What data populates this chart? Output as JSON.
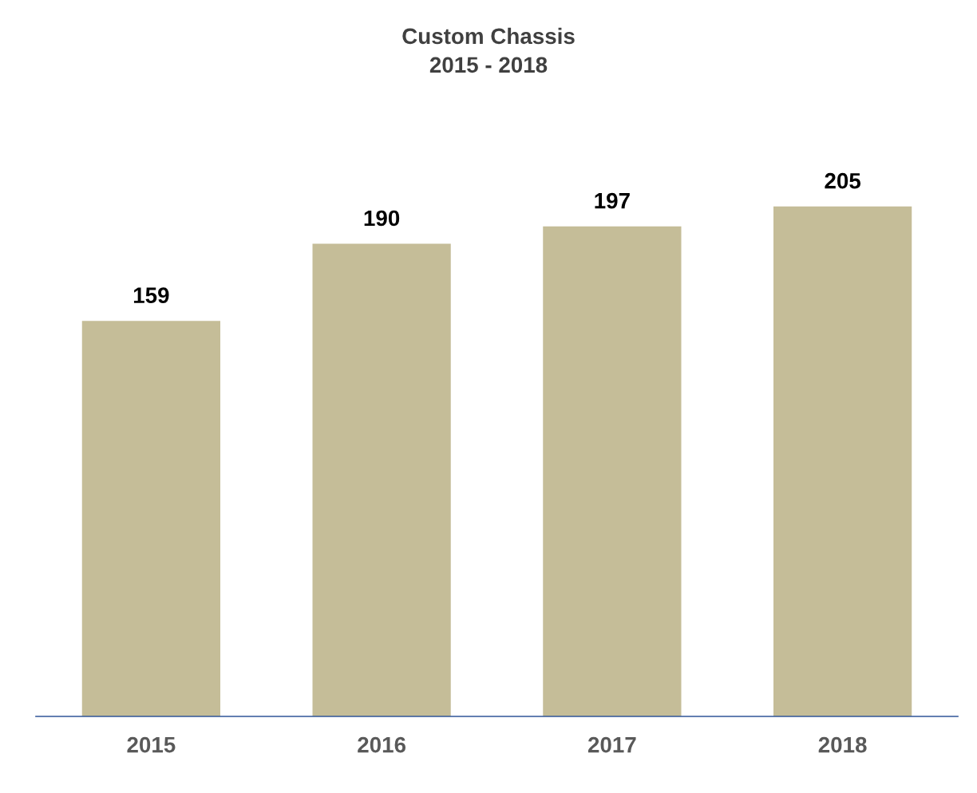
{
  "chart_data": {
    "type": "bar",
    "title": "Custom Chassis\n2015 - 2018",
    "categories": [
      "2015",
      "2016",
      "2017",
      "2018"
    ],
    "values": [
      159,
      190,
      197,
      205
    ],
    "color": "#c5bd98",
    "data_labels": true,
    "grid": false,
    "legend": false,
    "tick_labels": "x"
  }
}
